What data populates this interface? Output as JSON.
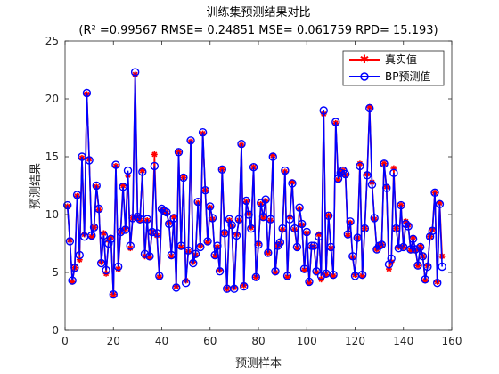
{
  "chart_data": {
    "type": "line",
    "title": "训练集预测结果对比",
    "subtitle": "(R² =0.99567 RMSE= 0.24851 MSE= 0.061759 RPD= 15.193)",
    "xlabel": "预测样本",
    "ylabel": "预测结果",
    "xlim": [
      0,
      160
    ],
    "ylim": [
      0,
      25
    ],
    "xticks": [
      "0",
      "20",
      "40",
      "60",
      "80",
      "100",
      "120",
      "140",
      "160"
    ],
    "yticks": [
      "0",
      "5",
      "10",
      "15",
      "20",
      "25"
    ],
    "grid": false,
    "legend_position": "top-right",
    "series": [
      {
        "name": "真实值",
        "color": "#ff0000",
        "marker": "star",
        "values": [
          10.7,
          7.8,
          4.2,
          5.4,
          11.6,
          6.1,
          14.9,
          8.3,
          20.4,
          14.8,
          8.1,
          8.9,
          12.4,
          10.4,
          5.9,
          8.4,
          4.9,
          7.8,
          8.0,
          3.1,
          14.2,
          5.3,
          8.5,
          12.5,
          8.8,
          13.4,
          7.1,
          9.7,
          22.1,
          9.8,
          9.5,
          13.8,
          6.4,
          9.5,
          6.3,
          8.5,
          15.2,
          8.2,
          4.6,
          10.4,
          10.3,
          10.1,
          9.3,
          6.4,
          9.8,
          3.8,
          15.4,
          7.2,
          13.2,
          4.3,
          6.8,
          16.3,
          5.9,
          6.5,
          11.0,
          7.3,
          17.0,
          12.1,
          7.6,
          10.6,
          9.6,
          6.4,
          7.2,
          5.2,
          13.9,
          8.4,
          3.6,
          9.5,
          9.0,
          3.7,
          8.3,
          9.5,
          16.0,
          3.9,
          11.1,
          10.1,
          8.9,
          14.1,
          4.6,
          7.5,
          10.9,
          9.7,
          11.2,
          6.7,
          9.5,
          15.1,
          5.0,
          7.3,
          7.5,
          8.7,
          13.7,
          4.6,
          9.8,
          12.8,
          8.7,
          7.1,
          10.5,
          9.1,
          5.2,
          8.4,
          4.1,
          7.2,
          7.2,
          5.0,
          8.3,
          4.4,
          18.7,
          4.8,
          9.9,
          7.1,
          4.7,
          17.9,
          13.0,
          13.5,
          13.8,
          13.4,
          8.2,
          9.3,
          6.3,
          4.8,
          8.0,
          14.4,
          4.7,
          8.8,
          13.5,
          19.3,
          12.8,
          9.6,
          7.0,
          7.3,
          7.4,
          14.4,
          12.4,
          5.3,
          5.9,
          14.0,
          8.8,
          7.2,
          10.8,
          7.2,
          9.4,
          9.1,
          6.9,
          8.0,
          6.9,
          5.6,
          7.2,
          6.4,
          4.3,
          5.6,
          8.1,
          8.7,
          11.9,
          4.2,
          11.0,
          6.4
        ]
      },
      {
        "name": "BP预测值",
        "color": "#0000ff",
        "marker": "circle",
        "values": [
          10.8,
          7.7,
          4.3,
          5.4,
          11.7,
          6.5,
          15.0,
          8.1,
          20.5,
          14.7,
          8.2,
          8.9,
          12.5,
          10.5,
          5.8,
          8.2,
          5.2,
          7.5,
          7.9,
          3.1,
          14.3,
          5.5,
          8.5,
          12.4,
          8.7,
          13.8,
          7.3,
          9.7,
          22.3,
          9.8,
          9.6,
          13.7,
          6.6,
          9.6,
          6.4,
          8.5,
          14.2,
          8.4,
          4.7,
          10.5,
          10.3,
          10.2,
          9.2,
          6.5,
          9.7,
          3.7,
          15.4,
          7.3,
          13.2,
          4.1,
          6.9,
          16.4,
          5.8,
          6.6,
          11.1,
          7.2,
          17.1,
          12.1,
          7.7,
          10.7,
          9.7,
          6.5,
          7.3,
          5.1,
          13.9,
          8.4,
          3.6,
          9.6,
          9.1,
          3.6,
          8.2,
          9.6,
          16.1,
          3.8,
          11.2,
          10.0,
          8.8,
          14.1,
          4.6,
          7.4,
          11.0,
          9.8,
          11.3,
          6.7,
          9.6,
          15.0,
          5.1,
          7.3,
          7.6,
          8.8,
          13.8,
          4.7,
          9.6,
          12.7,
          8.8,
          7.2,
          10.6,
          9.2,
          5.3,
          8.5,
          4.2,
          7.3,
          7.3,
          5.1,
          8.1,
          4.7,
          19.0,
          4.9,
          9.9,
          7.2,
          4.8,
          18.0,
          13.1,
          13.6,
          13.8,
          13.5,
          8.3,
          9.4,
          6.4,
          4.7,
          8.0,
          14.2,
          4.8,
          8.8,
          13.4,
          19.2,
          12.6,
          9.7,
          7.0,
          7.3,
          7.4,
          14.4,
          12.3,
          5.7,
          6.2,
          13.6,
          8.8,
          7.1,
          10.8,
          7.2,
          9.2,
          9.0,
          7.0,
          7.9,
          7.0,
          5.6,
          7.2,
          6.4,
          4.4,
          5.5,
          8.1,
          8.6,
          11.9,
          4.1,
          10.9,
          5.5
        ]
      }
    ]
  }
}
